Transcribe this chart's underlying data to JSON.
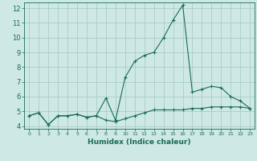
{
  "xlabel": "Humidex (Indice chaleur)",
  "ylabel": "",
  "bg_color": "#cde8e5",
  "grid_color": "#aaccca",
  "line_color": "#1a6b5a",
  "xlim": [
    -0.5,
    23.5
  ],
  "ylim": [
    3.8,
    12.4
  ],
  "yticks": [
    4,
    5,
    6,
    7,
    8,
    9,
    10,
    11,
    12
  ],
  "xticks": [
    0,
    1,
    2,
    3,
    4,
    5,
    6,
    7,
    8,
    9,
    10,
    11,
    12,
    13,
    14,
    15,
    16,
    17,
    18,
    19,
    20,
    21,
    22,
    23
  ],
  "series1_x": [
    0,
    1,
    2,
    3,
    4,
    5,
    6,
    7,
    8,
    9,
    10,
    11,
    12,
    13,
    14,
    15,
    16,
    17,
    18,
    19,
    20,
    21,
    22,
    23
  ],
  "series1_y": [
    4.7,
    4.9,
    4.1,
    4.7,
    4.7,
    4.8,
    4.6,
    4.7,
    4.4,
    4.3,
    4.5,
    4.7,
    4.9,
    5.1,
    5.1,
    5.1,
    5.1,
    5.2,
    5.2,
    5.3,
    5.3,
    5.3,
    5.3,
    5.2
  ],
  "series2_x": [
    0,
    1,
    2,
    3,
    4,
    5,
    6,
    7,
    8,
    9,
    10,
    11,
    12,
    13,
    14,
    15,
    16,
    17,
    18,
    19,
    20,
    21,
    22,
    23
  ],
  "series2_y": [
    4.7,
    4.9,
    4.1,
    4.7,
    4.7,
    4.8,
    4.6,
    4.7,
    5.9,
    4.4,
    7.3,
    8.4,
    8.8,
    9.0,
    10.0,
    11.2,
    12.2,
    6.3,
    6.5,
    6.7,
    6.6,
    6.0,
    5.7,
    5.2
  ]
}
